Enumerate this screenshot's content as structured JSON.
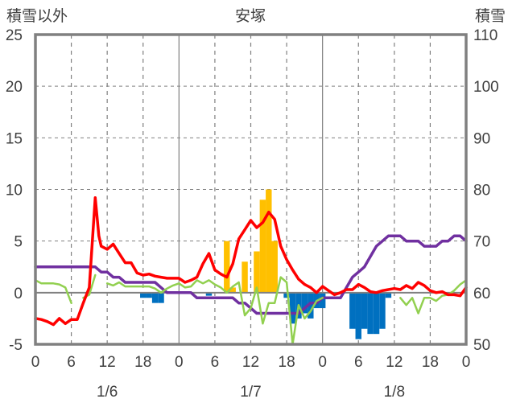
{
  "chart_data": {
    "type": "bar-line",
    "title": "安塚",
    "left_axis_label": "積雪以外",
    "right_axis_label": "積雪",
    "left_ylim": [
      -5,
      25
    ],
    "left_ticks": [
      "-5",
      "0",
      "5",
      "10",
      "15",
      "20",
      "25"
    ],
    "right_ylim": [
      50,
      110
    ],
    "right_ticks": [
      "50",
      "60",
      "70",
      "80",
      "90",
      "100",
      "110"
    ],
    "x_hours_range": [
      0,
      72
    ],
    "x_ticks": [
      {
        "h": 0,
        "label": "0"
      },
      {
        "h": 6,
        "label": "6"
      },
      {
        "h": 12,
        "label": "12"
      },
      {
        "h": 18,
        "label": "18"
      },
      {
        "h": 24,
        "label": "0"
      },
      {
        "h": 30,
        "label": "6"
      },
      {
        "h": 36,
        "label": "12"
      },
      {
        "h": 42,
        "label": "18"
      },
      {
        "h": 48,
        "label": "0"
      },
      {
        "h": 54,
        "label": "6"
      },
      {
        "h": 60,
        "label": "12"
      },
      {
        "h": 66,
        "label": "18"
      },
      {
        "h": 72,
        "label": "0"
      }
    ],
    "date_labels": [
      {
        "h": 12,
        "label": "1/6"
      },
      {
        "h": 36,
        "label": "1/7"
      },
      {
        "h": 60,
        "label": "1/8"
      }
    ],
    "colors": {
      "positive_bar": "#FFC000",
      "negative_bar": "#0070C0",
      "red_line": "#FF0000",
      "green_line": "#92D050",
      "purple_line": "#7030A0",
      "frame": "#808080",
      "grid": "#808080"
    },
    "bars": [
      {
        "h": 18,
        "v": -0.5
      },
      {
        "h": 19,
        "v": -0.5
      },
      {
        "h": 20,
        "v": -1.0
      },
      {
        "h": 21,
        "v": -1.0
      },
      {
        "h": 29,
        "v": -0.3
      },
      {
        "h": 32,
        "v": 5.0
      },
      {
        "h": 33,
        "v": 0.5
      },
      {
        "h": 35,
        "v": 3.0
      },
      {
        "h": 37,
        "v": 4.0
      },
      {
        "h": 38,
        "v": 9.0
      },
      {
        "h": 39,
        "v": 10.0
      },
      {
        "h": 40,
        "v": 5.0
      },
      {
        "h": 42,
        "v": -0.5
      },
      {
        "h": 43,
        "v": -3.0
      },
      {
        "h": 44,
        "v": -2.5
      },
      {
        "h": 45,
        "v": -2.0
      },
      {
        "h": 46,
        "v": -2.5
      },
      {
        "h": 47,
        "v": -1.5
      },
      {
        "h": 48,
        "v": -1.5
      },
      {
        "h": 53,
        "v": -3.5
      },
      {
        "h": 54,
        "v": -4.5
      },
      {
        "h": 55,
        "v": -3.5
      },
      {
        "h": 56,
        "v": -4.0
      },
      {
        "h": 57,
        "v": -4.0
      },
      {
        "h": 58,
        "v": -3.5
      },
      {
        "h": 59,
        "v": -0.5
      }
    ],
    "red_series": [
      [
        0,
        -2.5
      ],
      [
        1,
        -2.6
      ],
      [
        2,
        -2.8
      ],
      [
        3,
        -3.1
      ],
      [
        4,
        -2.5
      ],
      [
        5,
        -3.0
      ],
      [
        6,
        -2.6
      ],
      [
        7,
        -2.6
      ],
      [
        8,
        -1.0
      ],
      [
        9,
        0.5
      ],
      [
        10,
        9.2
      ],
      [
        10.6,
        5.5
      ],
      [
        11,
        4.5
      ],
      [
        12,
        4.2
      ],
      [
        13,
        4.7
      ],
      [
        14,
        3.8
      ],
      [
        15,
        2.9
      ],
      [
        16,
        2.9
      ],
      [
        17,
        1.9
      ],
      [
        18,
        1.7
      ],
      [
        19,
        1.8
      ],
      [
        20,
        1.6
      ],
      [
        21,
        1.5
      ],
      [
        22,
        1.4
      ],
      [
        23,
        1.4
      ],
      [
        24,
        1.4
      ],
      [
        25,
        1.0
      ],
      [
        26,
        1.2
      ],
      [
        27,
        1.5
      ],
      [
        28,
        2.8
      ],
      [
        29,
        3.8
      ],
      [
        30,
        2.2
      ],
      [
        31,
        1.8
      ],
      [
        32,
        1.5
      ],
      [
        33,
        2.8
      ],
      [
        34,
        5.2
      ],
      [
        35,
        6.1
      ],
      [
        36,
        7.0
      ],
      [
        37,
        6.3
      ],
      [
        38,
        6.8
      ],
      [
        39,
        7.8
      ],
      [
        40,
        7.1
      ],
      [
        41,
        4.5
      ],
      [
        42,
        3.2
      ],
      [
        43,
        2.2
      ],
      [
        44,
        1.3
      ],
      [
        45,
        0.8
      ],
      [
        46,
        0.5
      ],
      [
        47,
        0.0
      ],
      [
        48,
        0.6
      ],
      [
        49,
        0.2
      ],
      [
        50,
        -0.2
      ],
      [
        51,
        0.0
      ],
      [
        52,
        0.3
      ],
      [
        53,
        0.3
      ],
      [
        54,
        0.8
      ],
      [
        55,
        0.5
      ],
      [
        56,
        0.1
      ],
      [
        57,
        0.0
      ],
      [
        58,
        0.2
      ],
      [
        59,
        0.3
      ],
      [
        60,
        0.4
      ],
      [
        61,
        0.3
      ],
      [
        62,
        0.7
      ],
      [
        63,
        0.4
      ],
      [
        64,
        1.0
      ],
      [
        65,
        0.7
      ],
      [
        66,
        0.2
      ],
      [
        67,
        0.0
      ],
      [
        68,
        0.1
      ],
      [
        69,
        -0.2
      ],
      [
        70,
        -0.2
      ],
      [
        71,
        -0.3
      ],
      [
        72,
        0.5
      ]
    ],
    "green_segments": [
      [
        [
          0,
          1.2
        ],
        [
          1,
          0.9
        ],
        [
          2,
          0.9
        ],
        [
          3,
          0.9
        ],
        [
          4,
          0.8
        ],
        [
          5,
          0.5
        ],
        [
          6,
          -1.0
        ]
      ],
      [
        [
          8,
          -0.5
        ],
        [
          9,
          -0.2
        ],
        [
          10,
          1.7
        ]
      ],
      [
        [
          12,
          0.9
        ],
        [
          13,
          0.7
        ],
        [
          14,
          1.0
        ],
        [
          15,
          0.6
        ],
        [
          16,
          0.6
        ],
        [
          17,
          0.6
        ],
        [
          18,
          0.6
        ],
        [
          19,
          0.6
        ],
        [
          20,
          0.4
        ],
        [
          21,
          0.0
        ],
        [
          22,
          0.4
        ],
        [
          23,
          0.7
        ],
        [
          24,
          0.9
        ],
        [
          25,
          0.5
        ],
        [
          26,
          0.6
        ],
        [
          27,
          1.2
        ],
        [
          28,
          0.9
        ],
        [
          29,
          1.2
        ],
        [
          30,
          0.8
        ],
        [
          31,
          0.5
        ],
        [
          32,
          0.0
        ],
        [
          33,
          0.6
        ],
        [
          34,
          1.0
        ],
        [
          35,
          -2.2
        ],
        [
          36,
          -1.5
        ],
        [
          37,
          0.5
        ],
        [
          38,
          -3.0
        ],
        [
          39,
          -1.0
        ],
        [
          40,
          -1.0
        ],
        [
          41,
          1.5
        ],
        [
          42,
          1.0
        ],
        [
          43,
          -5.0
        ],
        [
          44,
          -1.2
        ],
        [
          45,
          -2.5
        ],
        [
          46,
          -1.8
        ],
        [
          47,
          -0.8
        ],
        [
          48,
          -0.5
        ]
      ],
      [
        [
          61,
          -0.5
        ],
        [
          62,
          -1.2
        ],
        [
          63,
          -0.5
        ],
        [
          64,
          -2.0
        ],
        [
          65,
          -0.5
        ],
        [
          66,
          -0.5
        ],
        [
          67,
          -0.8
        ],
        [
          68,
          -0.3
        ],
        [
          69,
          -0.2
        ],
        [
          70,
          0.2
        ],
        [
          71,
          0.8
        ],
        [
          72,
          1.2
        ]
      ]
    ],
    "purple_series": [
      [
        0,
        65
      ],
      [
        10,
        65
      ],
      [
        11,
        64
      ],
      [
        12,
        64
      ],
      [
        13,
        63
      ],
      [
        14,
        63
      ],
      [
        15,
        62
      ],
      [
        20,
        62
      ],
      [
        21,
        61
      ],
      [
        22,
        60
      ],
      [
        23,
        60
      ],
      [
        24,
        60
      ],
      [
        25,
        60
      ],
      [
        26,
        60
      ],
      [
        27,
        59
      ],
      [
        33,
        59
      ],
      [
        34,
        58
      ],
      [
        35,
        58
      ],
      [
        36,
        57
      ],
      [
        37,
        56
      ],
      [
        44,
        56
      ],
      [
        45,
        57
      ],
      [
        46,
        58
      ],
      [
        47,
        58
      ],
      [
        48,
        59
      ],
      [
        49,
        59
      ],
      [
        50,
        59
      ],
      [
        51,
        59
      ],
      [
        52,
        61
      ],
      [
        53,
        63
      ],
      [
        54,
        64
      ],
      [
        55,
        65
      ],
      [
        56,
        67
      ],
      [
        57,
        69
      ],
      [
        58,
        70
      ],
      [
        59,
        71
      ],
      [
        60,
        71
      ],
      [
        61,
        71
      ],
      [
        62,
        70
      ],
      [
        63,
        70
      ],
      [
        64,
        70
      ],
      [
        65,
        69
      ],
      [
        66,
        69
      ],
      [
        67,
        69
      ],
      [
        68,
        70
      ],
      [
        69,
        70
      ],
      [
        70,
        71
      ],
      [
        71,
        71
      ],
      [
        72,
        70
      ]
    ]
  }
}
